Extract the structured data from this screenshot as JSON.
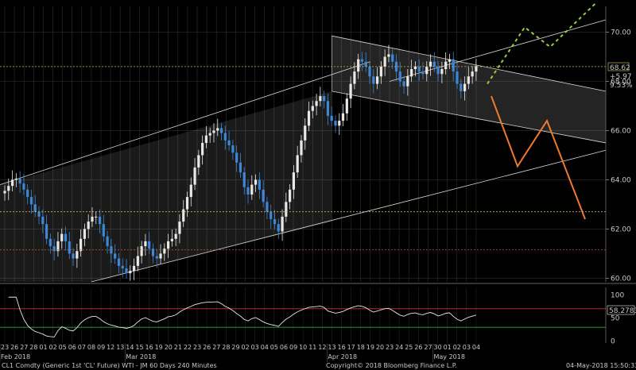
{
  "chart_data": {
    "type": "candlestick",
    "instrument": "CL1 Comdty (Generic 1st 'CL' Future) WTI - JM 60 Days 240 Minutes",
    "copyright": "Copyright© 2018 Bloomberg Finance L.P.",
    "timestamp": "04-May-2018 15:50:33",
    "price_axis": {
      "ticks": [
        60,
        62,
        64,
        66,
        68,
        70
      ],
      "tick_labels": [
        "60.00",
        "62.00",
        "64.00",
        "66.00",
        "68.00",
        "70.00"
      ],
      "ylim": [
        59.85,
        71.05
      ]
    },
    "price_labels": {
      "last": "68.62",
      "change": "+5.97",
      "pct": "9.53%"
    },
    "rsi_axis": {
      "ticks": [
        0,
        50,
        100
      ],
      "ylim": [
        -4,
        116
      ],
      "last_label": "58.2783"
    },
    "rsi_levels": {
      "upper": 70,
      "lower": 30
    },
    "horizontal_levels": [
      {
        "name": "top",
        "value": 68.6,
        "color": "#c8b464"
      },
      {
        "name": "mid",
        "value": 62.7,
        "color": "#c8b464"
      },
      {
        "name": "low",
        "value": 61.15,
        "color": "#c8643c"
      }
    ],
    "date_ticks": [
      "23",
      "26",
      "27",
      "28",
      "01",
      "02",
      "05",
      "06",
      "07",
      "08",
      "09",
      "12",
      "13",
      "14",
      "15",
      "16",
      "19",
      "20",
      "21",
      "22",
      "23",
      "26",
      "27",
      "28",
      "29",
      "02",
      "03",
      "04",
      "05",
      "06",
      "09",
      "10",
      "11",
      "12",
      "13",
      "16",
      "17",
      "18",
      "19",
      "20",
      "23",
      "24",
      "25",
      "26",
      "27",
      "30",
      "01",
      "02",
      "03",
      "04"
    ],
    "month_labels": [
      "Feb 2018",
      "Mar 2018",
      "Apr 2018",
      "May 2018"
    ],
    "closes": [
      63.55,
      63.75,
      64,
      64.05,
      63.85,
      63.6,
      63.3,
      63.0,
      62.7,
      62.5,
      62.2,
      61.6,
      61.3,
      61.1,
      61.5,
      61.8,
      61.5,
      61.0,
      60.8,
      61.1,
      61.6,
      62.0,
      62.3,
      62.5,
      62.5,
      62.2,
      61.7,
      61.3,
      61.0,
      60.8,
      60.5,
      60.4,
      60.2,
      60.3,
      60.5,
      60.9,
      61.3,
      61.5,
      61.2,
      60.9,
      60.8,
      61.0,
      61.2,
      61.5,
      61.6,
      61.8,
      62.3,
      62.8,
      63.3,
      63.8,
      64.5,
      65.0,
      65.5,
      65.8,
      65.9,
      66.0,
      66.1,
      65.9,
      65.6,
      65.4,
      65.1,
      64.7,
      64.3,
      63.7,
      63.4,
      63.8,
      64.0,
      63.6,
      63.1,
      62.7,
      62.4,
      62.2,
      61.9,
      62.5,
      63.1,
      63.6,
      64.3,
      65.0,
      65.6,
      66.2,
      66.8,
      67.0,
      67.2,
      67.4,
      67.2,
      66.6,
      66.4,
      66.2,
      66.4,
      66.7,
      67.3,
      67.9,
      68.4,
      68.9,
      68.8,
      68.6,
      68.2,
      67.9,
      68.2,
      68.6,
      69.0,
      69.1,
      68.8,
      68.4,
      68.0,
      67.8,
      68.2,
      68.5,
      68.6,
      68.4,
      68.3,
      68.6,
      68.8,
      68.6,
      68.3,
      68.5,
      68.8,
      68.9,
      68.4,
      67.9,
      67.6,
      67.9,
      68.2,
      68.4,
      68.62
    ],
    "annotations": {
      "scenario_green": "bullish path",
      "scenario_orange": "bearish path"
    }
  }
}
